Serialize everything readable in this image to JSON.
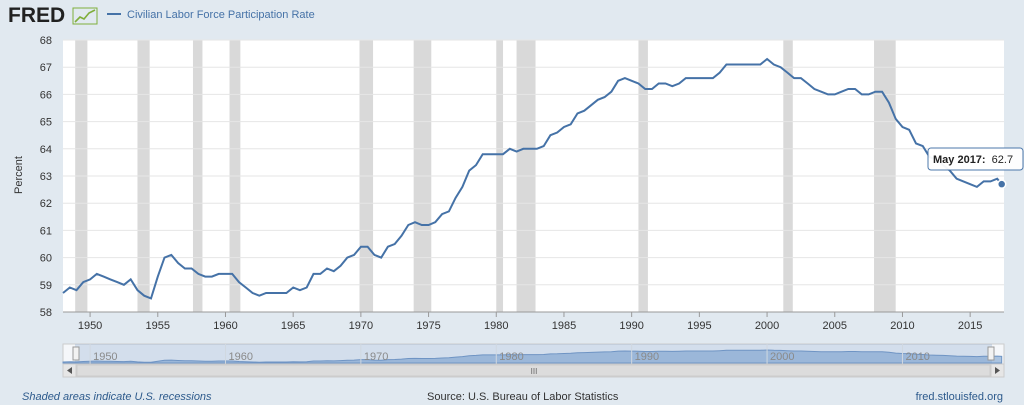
{
  "header": {
    "logo": "FRED",
    "legend_label": "Civilian Labor Force Participation Rate"
  },
  "colors": {
    "line": "#4572a7",
    "recession": "#d9d9d9",
    "background": "#e1e9f0",
    "plot_bg": "#ffffff"
  },
  "tooltip": {
    "date": "May 2017:",
    "value": "62.7"
  },
  "footer": {
    "recessions_note": "Shaded areas indicate U.S. recessions",
    "source": "Source: U.S. Bureau of Labor Statistics",
    "site": "fred.stlouisfed.org"
  },
  "navigator": {
    "tick_labels": [
      "1950",
      "1960",
      "1970",
      "1980",
      "1990",
      "2000",
      "2010"
    ],
    "scroll_left_icon": "chevron-left-icon",
    "scroll_right_icon": "chevron-right-icon",
    "grip_label": "III"
  },
  "chart_data": {
    "type": "line",
    "title": "",
    "xlabel": "",
    "ylabel": "Percent",
    "xlim": [
      1948,
      2017.5
    ],
    "ylim": [
      58,
      68
    ],
    "grid": true,
    "legend_placement": "top-left",
    "x_ticks": [
      "1950",
      "1955",
      "1960",
      "1965",
      "1970",
      "1975",
      "1980",
      "1985",
      "1990",
      "1995",
      "2000",
      "2005",
      "2010",
      "2015"
    ],
    "y_ticks": [
      "58",
      "59",
      "60",
      "61",
      "62",
      "63",
      "64",
      "65",
      "66",
      "67",
      "68"
    ],
    "recessions": [
      [
        1948.9,
        1949.8
      ],
      [
        1953.5,
        1954.4
      ],
      [
        1957.6,
        1958.3
      ],
      [
        1960.3,
        1961.1
      ],
      [
        1969.9,
        1970.9
      ],
      [
        1973.9,
        1975.2
      ],
      [
        1980.0,
        1980.5
      ],
      [
        1981.5,
        1982.9
      ],
      [
        1990.5,
        1991.2
      ],
      [
        2001.2,
        2001.9
      ],
      [
        2007.9,
        2009.5
      ]
    ],
    "series": [
      {
        "name": "Civilian Labor Force Participation Rate",
        "x": [
          1948.0,
          1948.5,
          1949.0,
          1949.5,
          1950.0,
          1950.5,
          1951.0,
          1951.5,
          1952.0,
          1952.5,
          1953.0,
          1953.5,
          1954.0,
          1954.5,
          1955.0,
          1955.5,
          1956.0,
          1956.5,
          1957.0,
          1957.5,
          1958.0,
          1958.5,
          1959.0,
          1959.5,
          1960.0,
          1960.5,
          1961.0,
          1961.5,
          1962.0,
          1962.5,
          1963.0,
          1963.5,
          1964.0,
          1964.5,
          1965.0,
          1965.5,
          1966.0,
          1966.5,
          1967.0,
          1967.5,
          1968.0,
          1968.5,
          1969.0,
          1969.5,
          1970.0,
          1970.5,
          1971.0,
          1971.5,
          1972.0,
          1972.5,
          1973.0,
          1973.5,
          1974.0,
          1974.5,
          1975.0,
          1975.5,
          1976.0,
          1976.5,
          1977.0,
          1977.5,
          1978.0,
          1978.5,
          1979.0,
          1979.5,
          1980.0,
          1980.5,
          1981.0,
          1981.5,
          1982.0,
          1982.5,
          1983.0,
          1983.5,
          1984.0,
          1984.5,
          1985.0,
          1985.5,
          1986.0,
          1986.5,
          1987.0,
          1987.5,
          1988.0,
          1988.5,
          1989.0,
          1989.5,
          1990.0,
          1990.5,
          1991.0,
          1991.5,
          1992.0,
          1992.5,
          1993.0,
          1993.5,
          1994.0,
          1994.5,
          1995.0,
          1995.5,
          1996.0,
          1996.5,
          1997.0,
          1997.5,
          1998.0,
          1998.5,
          1999.0,
          1999.5,
          2000.0,
          2000.5,
          2001.0,
          2001.5,
          2002.0,
          2002.5,
          2003.0,
          2003.5,
          2004.0,
          2004.5,
          2005.0,
          2005.5,
          2006.0,
          2006.5,
          2007.0,
          2007.5,
          2008.0,
          2008.5,
          2009.0,
          2009.5,
          2010.0,
          2010.5,
          2011.0,
          2011.5,
          2012.0,
          2012.5,
          2013.0,
          2013.5,
          2014.0,
          2014.5,
          2015.0,
          2015.5,
          2016.0,
          2016.5,
          2017.0,
          2017.33
        ],
        "values": [
          58.7,
          58.9,
          58.8,
          59.1,
          59.2,
          59.4,
          59.3,
          59.2,
          59.1,
          59.0,
          59.2,
          58.8,
          58.6,
          58.5,
          59.3,
          60.0,
          60.1,
          59.8,
          59.6,
          59.6,
          59.4,
          59.3,
          59.3,
          59.4,
          59.4,
          59.4,
          59.1,
          58.9,
          58.7,
          58.6,
          58.7,
          58.7,
          58.7,
          58.7,
          58.9,
          58.8,
          58.9,
          59.4,
          59.4,
          59.6,
          59.5,
          59.7,
          60.0,
          60.1,
          60.4,
          60.4,
          60.1,
          60.0,
          60.4,
          60.5,
          60.8,
          61.2,
          61.3,
          61.2,
          61.2,
          61.3,
          61.6,
          61.7,
          62.2,
          62.6,
          63.2,
          63.4,
          63.8,
          63.8,
          63.8,
          63.8,
          64.0,
          63.9,
          64.0,
          64.0,
          64.0,
          64.1,
          64.5,
          64.6,
          64.8,
          64.9,
          65.3,
          65.4,
          65.6,
          65.8,
          65.9,
          66.1,
          66.5,
          66.6,
          66.5,
          66.4,
          66.2,
          66.2,
          66.4,
          66.4,
          66.3,
          66.4,
          66.6,
          66.6,
          66.6,
          66.6,
          66.6,
          66.8,
          67.1,
          67.1,
          67.1,
          67.1,
          67.1,
          67.1,
          67.3,
          67.1,
          67.0,
          66.8,
          66.6,
          66.6,
          66.4,
          66.2,
          66.1,
          66.0,
          66.0,
          66.1,
          66.2,
          66.2,
          66.0,
          66.0,
          66.1,
          66.1,
          65.7,
          65.1,
          64.8,
          64.7,
          64.2,
          64.1,
          63.7,
          63.6,
          63.4,
          63.2,
          62.9,
          62.8,
          62.7,
          62.6,
          62.8,
          62.8,
          62.9,
          62.7
        ]
      }
    ]
  }
}
